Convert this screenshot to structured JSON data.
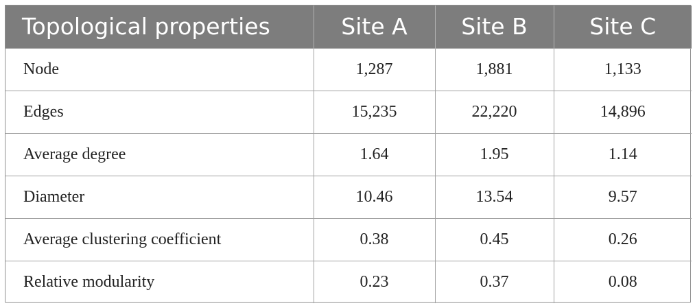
{
  "table": {
    "headers": [
      "Topological properties",
      "Site A",
      "Site B",
      "Site C"
    ],
    "rows": [
      [
        "Node",
        "1,287",
        "1,881",
        "1,133"
      ],
      [
        "Edges",
        "15,235",
        "22,220",
        "14,896"
      ],
      [
        "Average degree",
        "1.64",
        "1.95",
        "1.14"
      ],
      [
        "Diameter",
        "10.46",
        "13.54",
        "9.57"
      ],
      [
        "Average clustering coefficient",
        "0.38",
        "0.45",
        "0.26"
      ],
      [
        "Relative modularity",
        "0.23",
        "0.37",
        "0.08"
      ]
    ]
  },
  "colors": {
    "header_background": "#7d7d7d",
    "header_text": "#ffffff",
    "grid_line": "#a0a0a0"
  }
}
